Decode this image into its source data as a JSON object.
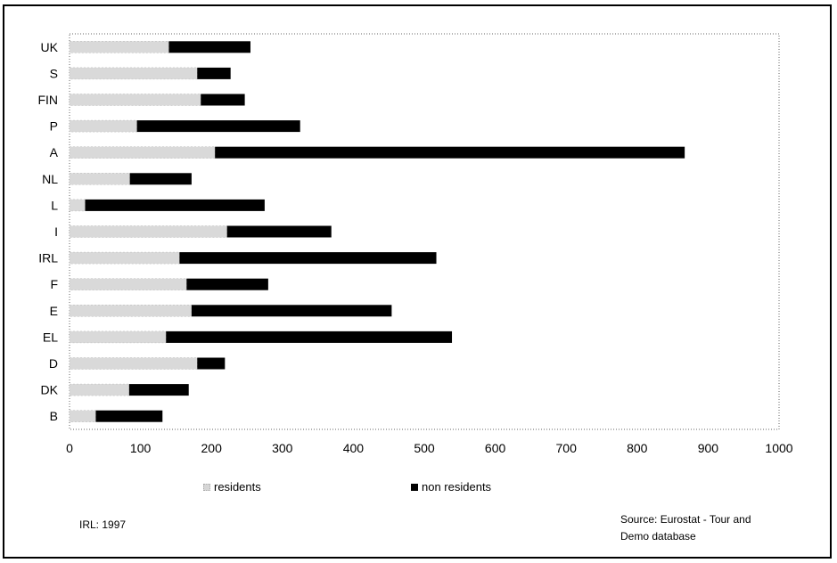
{
  "chart_data": {
    "type": "bar",
    "orientation": "horizontal",
    "stacked": true,
    "categories": [
      "UK",
      "S",
      "FIN",
      "P",
      "A",
      "NL",
      "L",
      "I",
      "IRL",
      "F",
      "E",
      "EL",
      "D",
      "DK",
      "B"
    ],
    "series": [
      {
        "name": "residents",
        "color": "#d9d9d9",
        "values": [
          140,
          180,
          185,
          95,
          205,
          85,
          22,
          222,
          155,
          165,
          172,
          136,
          180,
          84,
          37
        ]
      },
      {
        "name": "non residents",
        "color": "#000000",
        "values": [
          115,
          47,
          62,
          230,
          662,
          87,
          253,
          147,
          362,
          115,
          282,
          403,
          39,
          84,
          94
        ]
      }
    ],
    "xlim": [
      0,
      1000
    ],
    "xticks": [
      "0",
      "100",
      "200",
      "300",
      "400",
      "500",
      "600",
      "700",
      "800",
      "900",
      "1000"
    ],
    "xlabel": "",
    "ylabel": "",
    "title": "",
    "grid": false,
    "legend_placement": "bottom"
  },
  "notes": {
    "left": "IRL: 1997",
    "source_line1": "Source: Eurostat - Tour and",
    "source_line2": "Demo database"
  }
}
